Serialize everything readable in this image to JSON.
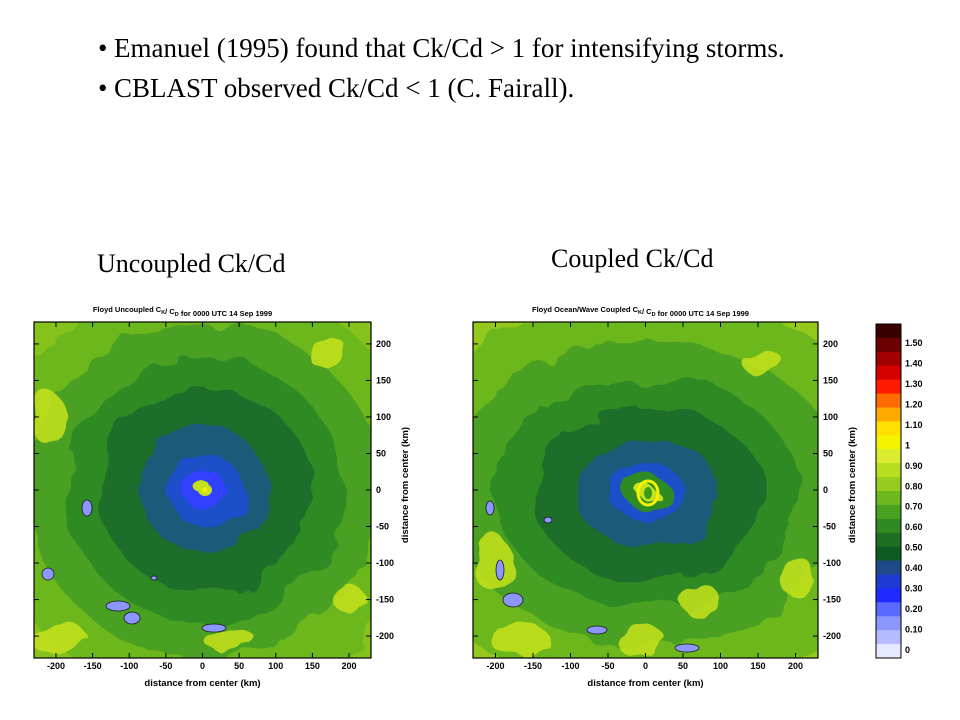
{
  "slide": {
    "bullets": [
      "Emanuel (1995) found that Ck/Cd > 1 for intensifying storms.",
      "CBLAST observed Ck/Cd < 1 (C. Fairall)."
    ],
    "bullet_symbol": "•",
    "left_heading": "Uncoupled Ck/Cd",
    "right_heading": "Coupled Ck/Cd"
  },
  "chart_data": [
    {
      "type": "heatmap",
      "title": "Floyd Uncoupled CK/ CD for 0000 UTC 14 Sep 1999",
      "title_parts": {
        "prefix": "Floyd Uncoupled C",
        "sub1": "K",
        "mid": "/ C",
        "sub2": "D",
        "suffix": " for 0000 UTC 14 Sep 1999"
      },
      "xlabel": "distance from center (km)",
      "ylabel": "distance from center (km)",
      "xlim": [
        -230,
        230
      ],
      "ylim": [
        -230,
        230
      ],
      "xticks": [
        -200,
        -150,
        -100,
        -50,
        0,
        50,
        100,
        150,
        200
      ],
      "yticks": [
        200,
        150,
        100,
        50,
        0,
        -50,
        -100,
        -150,
        -200
      ],
      "field_levels_from_outer_to_center": [
        0.8,
        0.7,
        0.6,
        0.5,
        0.4,
        0.3,
        0.2,
        0.9
      ],
      "eye_value": 0.9
    },
    {
      "type": "heatmap",
      "title": "Floyd Ocean/Wave Coupled CK/ CD for 0000 UTC 14 Sep 1999",
      "title_parts": {
        "prefix": "Floyd Ocean/Wave Coupled C",
        "sub1": "K",
        "mid": "/ C",
        "sub2": "D",
        "suffix": " for 0000 UTC 14 Sep 1999"
      },
      "xlabel": "distance from center (km)",
      "ylabel": "distance from center (km)",
      "xlim": [
        -230,
        230
      ],
      "ylim": [
        -230,
        230
      ],
      "xticks": [
        -200,
        -150,
        -100,
        -50,
        0,
        50,
        100,
        150,
        200
      ],
      "yticks": [
        200,
        150,
        100,
        50,
        0,
        -50,
        -100,
        -150,
        -200
      ],
      "field_levels_from_outer_to_center": [
        0.8,
        0.7,
        0.6,
        0.5,
        0.4,
        0.3,
        0.6,
        0.9
      ],
      "eye_value": 0.9
    }
  ],
  "colorbar": {
    "labels": [
      "1.50",
      "1.40",
      "1.30",
      "1.20",
      "1.10",
      "1",
      "0.90",
      "0.80",
      "0.70",
      "0.60",
      "0.50",
      "0.40",
      "0.30",
      "0.20",
      "0.10",
      "0"
    ],
    "colors": [
      "#3a0000",
      "#6b0000",
      "#a00000",
      "#d50000",
      "#ff1a00",
      "#ff6a00",
      "#ffaa00",
      "#ffe000",
      "#f4f400",
      "#d9ec30",
      "#b8de20",
      "#96cc20",
      "#6cb81e",
      "#4aa020",
      "#2f8a24",
      "#1e6e24",
      "#0f5a22",
      "#1f4a8a",
      "#1e3ad0",
      "#1e2aff",
      "#5a6aff",
      "#8c96ff",
      "#b4bcff",
      "#e6e8ff"
    ]
  }
}
